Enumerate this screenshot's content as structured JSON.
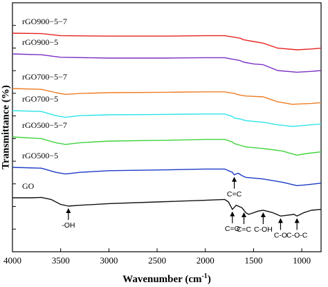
{
  "chart_data": {
    "type": "line",
    "xlabel": "Wavenumber (cm",
    "xlabel_sup": "-1",
    "xlabel_tail": ")",
    "ylabel": "Transmittance (%)",
    "xlim": [
      4000,
      800
    ],
    "x_reversed": true,
    "x_ticks": [
      4000,
      3500,
      3000,
      2500,
      2000,
      1500,
      1000
    ],
    "y_ticks": 10,
    "y_ticks_labeled": false,
    "series": [
      {
        "name": "rGO900−5−7",
        "color": "#e5231f",
        "points": [
          [
            4000,
            0
          ],
          [
            3700,
            -0.5
          ],
          [
            3500,
            -3
          ],
          [
            3000,
            -3.5
          ],
          [
            2400,
            -3.5
          ],
          [
            2000,
            -3
          ],
          [
            1800,
            -3
          ],
          [
            1640,
            -6
          ],
          [
            1600,
            -8
          ],
          [
            1550,
            -9
          ],
          [
            1500,
            -10
          ],
          [
            1400,
            -12
          ],
          [
            1250,
            -18
          ],
          [
            1050,
            -20
          ],
          [
            900,
            -19
          ],
          [
            800,
            -18
          ]
        ]
      },
      {
        "name": "rGO900−5",
        "color": "#7a2fc4",
        "points": [
          [
            4000,
            0
          ],
          [
            3700,
            -1
          ],
          [
            3500,
            -4
          ],
          [
            3000,
            -5
          ],
          [
            2400,
            -5
          ],
          [
            2000,
            -4.5
          ],
          [
            1800,
            -4.5
          ],
          [
            1640,
            -8
          ],
          [
            1600,
            -10
          ],
          [
            1550,
            -11
          ],
          [
            1500,
            -12
          ],
          [
            1400,
            -13
          ],
          [
            1250,
            -20
          ],
          [
            1050,
            -22
          ],
          [
            900,
            -21
          ],
          [
            800,
            -20
          ]
        ]
      },
      {
        "name": "rGO700−5−7",
        "color": "#ef7c22",
        "points": [
          [
            4000,
            0
          ],
          [
            3700,
            -1
          ],
          [
            3550,
            -5
          ],
          [
            3450,
            -7
          ],
          [
            3300,
            -6
          ],
          [
            3000,
            -5
          ],
          [
            2400,
            -4.5
          ],
          [
            2000,
            -4
          ],
          [
            1800,
            -4
          ],
          [
            1700,
            -6
          ],
          [
            1640,
            -8
          ],
          [
            1580,
            -9
          ],
          [
            1400,
            -10
          ],
          [
            1250,
            -16
          ],
          [
            1100,
            -19
          ],
          [
            900,
            -18
          ],
          [
            800,
            -17
          ]
        ]
      },
      {
        "name": "rGO700−5",
        "color": "#2de3e8",
        "points": [
          [
            4000,
            0
          ],
          [
            3700,
            -1
          ],
          [
            3550,
            -6
          ],
          [
            3450,
            -8
          ],
          [
            3300,
            -6
          ],
          [
            3000,
            -5
          ],
          [
            2400,
            -4.5
          ],
          [
            2000,
            -4
          ],
          [
            1800,
            -4
          ],
          [
            1720,
            -7
          ],
          [
            1700,
            -9
          ],
          [
            1640,
            -10
          ],
          [
            1580,
            -12
          ],
          [
            1400,
            -14
          ],
          [
            1250,
            -17
          ],
          [
            1100,
            -19
          ],
          [
            900,
            -17
          ],
          [
            800,
            -16
          ]
        ]
      },
      {
        "name": "rGO500−5−7",
        "color": "#3ed33b",
        "points": [
          [
            4000,
            0
          ],
          [
            3700,
            -2
          ],
          [
            3550,
            -7
          ],
          [
            3450,
            -9
          ],
          [
            3300,
            -7
          ],
          [
            3000,
            -5
          ],
          [
            2400,
            -4
          ],
          [
            2000,
            -3
          ],
          [
            1800,
            -3
          ],
          [
            1720,
            -6
          ],
          [
            1700,
            -8
          ],
          [
            1640,
            -10
          ],
          [
            1580,
            -12
          ],
          [
            1400,
            -14
          ],
          [
            1200,
            -17
          ],
          [
            1050,
            -22
          ],
          [
            950,
            -20
          ],
          [
            800,
            -18
          ]
        ]
      },
      {
        "name": "rGO500−5",
        "color": "#1a3ac6",
        "points": [
          [
            4000,
            0
          ],
          [
            3700,
            -1
          ],
          [
            3550,
            -6
          ],
          [
            3450,
            -8
          ],
          [
            3300,
            -6
          ],
          [
            3000,
            -4
          ],
          [
            2400,
            -3
          ],
          [
            2000,
            -2
          ],
          [
            1800,
            -2
          ],
          [
            1720,
            -6
          ],
          [
            1700,
            -9
          ],
          [
            1660,
            -7
          ],
          [
            1620,
            -10
          ],
          [
            1580,
            -12
          ],
          [
            1400,
            -14
          ],
          [
            1200,
            -18
          ],
          [
            1050,
            -22
          ],
          [
            950,
            -21
          ],
          [
            800,
            -19
          ]
        ]
      },
      {
        "name": "GO",
        "color": "#111111",
        "points": [
          [
            4000,
            0
          ],
          [
            3800,
            0
          ],
          [
            3700,
            0.5
          ],
          [
            3600,
            -2
          ],
          [
            3500,
            -8
          ],
          [
            3420,
            -10
          ],
          [
            3300,
            -9
          ],
          [
            3000,
            -7
          ],
          [
            2500,
            -5
          ],
          [
            2000,
            -3
          ],
          [
            1800,
            -2
          ],
          [
            1760,
            -5
          ],
          [
            1720,
            -14
          ],
          [
            1680,
            -9
          ],
          [
            1620,
            -12
          ],
          [
            1580,
            -18
          ],
          [
            1550,
            -20
          ],
          [
            1450,
            -16
          ],
          [
            1400,
            -15
          ],
          [
            1300,
            -18
          ],
          [
            1220,
            -22
          ],
          [
            1150,
            -21
          ],
          [
            1080,
            -20
          ],
          [
            1050,
            -22
          ],
          [
            980,
            -18
          ],
          [
            900,
            -15
          ],
          [
            800,
            -14
          ]
        ]
      }
    ],
    "annotations": [
      {
        "text": "C=C",
        "series": "rGO500−5",
        "x": 1700,
        "dir": "down"
      },
      {
        "text": "-OH",
        "series": "GO",
        "x": 3420,
        "dir": "down"
      },
      {
        "text": "C=O",
        "series": "GO",
        "x": 1720,
        "dir": "down"
      },
      {
        "text": "C=C",
        "series": "GO",
        "x": 1600,
        "dir": "down"
      },
      {
        "text": "C-OH",
        "series": "GO",
        "x": 1400,
        "dir": "down"
      },
      {
        "text": "C-O",
        "series": "GO",
        "x": 1220,
        "dir": "down"
      },
      {
        "text": "C-O-C",
        "series": "GO",
        "x": 1050,
        "dir": "down"
      }
    ],
    "grid": false,
    "legend": "inline labels above each curve"
  }
}
